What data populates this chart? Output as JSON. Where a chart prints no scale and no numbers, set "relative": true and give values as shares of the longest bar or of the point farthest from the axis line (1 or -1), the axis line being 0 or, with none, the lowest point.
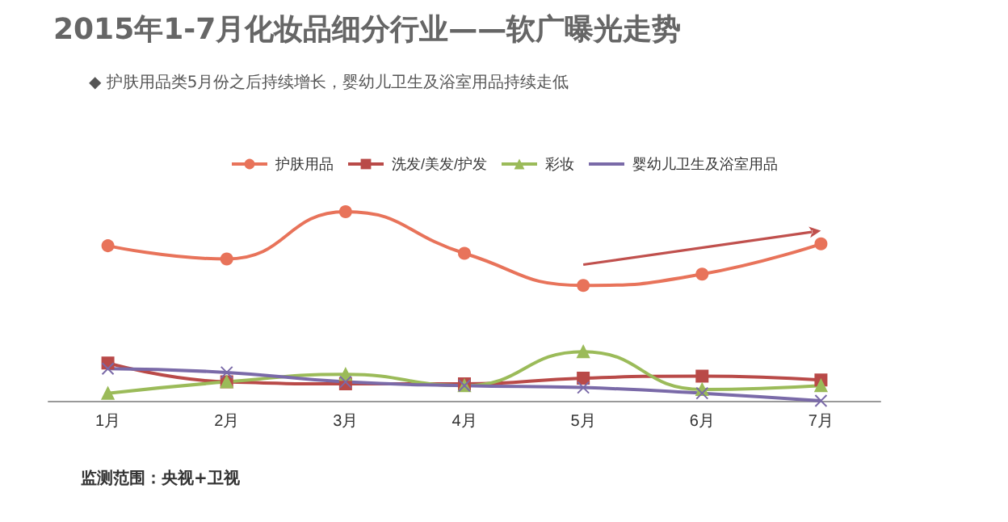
{
  "chart_data": {
    "type": "line",
    "title": "2015年1-7月化妆品细分行业——软广曝光走势",
    "subtitle": "◆ 护肤用品类5月份之后持续增长，婴幼儿卫生及浴室用品持续走低",
    "relative": true,
    "categories": [
      "1月",
      "2月",
      "3月",
      "4月",
      "5月",
      "6月",
      "7月"
    ],
    "legend": "top",
    "grid": false,
    "series": [
      {
        "name": "护肤用品",
        "color": "#e8735a",
        "marker": "circle",
        "values": [
          0.82,
          0.75,
          1,
          0.78,
          0.61,
          0.67,
          0.83
        ]
      },
      {
        "name": "洗发/美发/护发",
        "color": "#b94a48",
        "marker": "square",
        "values": [
          0.2,
          0.1,
          0.09,
          0.09,
          0.12,
          0.13,
          0.11
        ]
      },
      {
        "name": "彩妆",
        "color": "#9bbb59",
        "marker": "triangle",
        "values": [
          0.04,
          0.1,
          0.14,
          0.08,
          0.26,
          0.06,
          0.08
        ]
      },
      {
        "name": "婴幼儿卫生及浴室用品",
        "color": "#7a6aa8",
        "marker": "cross",
        "values": [
          0.17,
          0.15,
          0.1,
          0.08,
          0.07,
          0.04,
          0
        ]
      }
    ],
    "annotations": [
      "监测范围：央视+卫视"
    ]
  }
}
